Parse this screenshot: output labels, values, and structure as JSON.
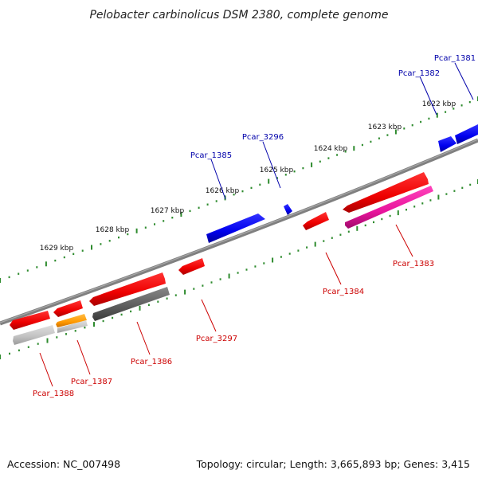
{
  "title": "Pelobacter carbinolicus DSM 2380, complete genome",
  "footer": {
    "accession": "Accession: NC_007498",
    "topology": "Topology: circular; Length: 3,665,893 bp; Genes: 3,415"
  },
  "scale_labels": [
    "1622 kbp",
    "1623 kbp",
    "1624 kbp",
    "1625 kbp",
    "1626 kbp",
    "1627 kbp",
    "1628 kbp",
    "1629 kbp"
  ],
  "genes_top": [
    "Pcar_1381",
    "Pcar_1382",
    "Pcar_3296",
    "Pcar_1385"
  ],
  "genes_bottom": [
    "Pcar_1383",
    "Pcar_1384",
    "Pcar_3297",
    "Pcar_1386",
    "Pcar_1387",
    "Pcar_1388"
  ],
  "colors": {
    "forward": "#0000ee",
    "reverse": "#ee0000",
    "backbone": "#808080",
    "ticks": "#2e8b2e",
    "magenta": "#e8149c",
    "gray": "#606060",
    "light_gray": "#c0c0c0",
    "orange": "#ff9900",
    "label_blue": "#0000aa",
    "label_red": "#cc0000"
  }
}
